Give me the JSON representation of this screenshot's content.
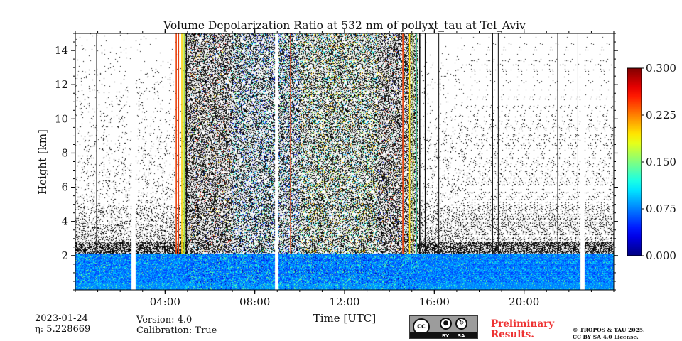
{
  "chart_data": {
    "type": "heatmap",
    "title": "Volume Depolarization Ratio at 532 nm of pollyxt_tau at Tel_Aviv",
    "xlabel": "Time [UTC]",
    "ylabel": "Height [km]",
    "xlim_hours": [
      0,
      24
    ],
    "ylim_km": [
      0,
      15
    ],
    "x_ticks": [
      {
        "hour": 4,
        "label": "04:00"
      },
      {
        "hour": 8,
        "label": "08:00"
      },
      {
        "hour": 12,
        "label": "12:00"
      },
      {
        "hour": 16,
        "label": "16:00"
      },
      {
        "hour": 20,
        "label": "20:00"
      }
    ],
    "y_ticks": [
      {
        "km": 2,
        "label": "2"
      },
      {
        "km": 4,
        "label": "4"
      },
      {
        "km": 6,
        "label": "6"
      },
      {
        "km": 8,
        "label": "8"
      },
      {
        "km": 10,
        "label": "10"
      },
      {
        "km": 12,
        "label": "12"
      },
      {
        "km": 14,
        "label": "14"
      }
    ],
    "colorbar": {
      "colormap": "jet",
      "range": [
        0.0,
        0.3
      ],
      "ticks": [
        "0.000",
        "0.075",
        "0.150",
        "0.225",
        "0.300"
      ]
    },
    "layer_top_km": 2.1,
    "data_gaps_hours": [
      [
        2.5,
        2.7
      ],
      [
        8.9,
        9.05
      ],
      [
        22.5,
        22.7
      ]
    ],
    "noisy_daytime_hours": [
      4.9,
      15.3
    ],
    "artifact_columns": [
      {
        "hour": 4.5,
        "color": "#e8400c"
      },
      {
        "hour": 4.6,
        "color": "#e8400c"
      },
      {
        "hour": 4.75,
        "color": "#ffd600"
      },
      {
        "hour": 4.85,
        "color": "#aee03a"
      },
      {
        "hour": 4.95,
        "color": "#111111"
      },
      {
        "hour": 9.6,
        "color": "#e8400c"
      },
      {
        "hour": 14.6,
        "color": "#e8400c"
      },
      {
        "hour": 14.9,
        "color": "#ffd600"
      },
      {
        "hour": 15.05,
        "color": "#aee03a"
      },
      {
        "hour": 15.2,
        "color": "#2fbf8a"
      },
      {
        "hour": 15.35,
        "color": "#111111"
      },
      {
        "hour": 15.6,
        "color": "#111111"
      }
    ],
    "black_lines_hours": [
      0.95,
      16.2,
      18.6,
      18.85,
      21.5,
      22.4
    ]
  },
  "info": {
    "date": "2023-01-24",
    "eta": "η: 5.228669",
    "version": "Version: 4.0",
    "calibration": "Calibration: True"
  },
  "license": {
    "badge_cc": "cc",
    "badge_by": "BY",
    "badge_sa": "SA",
    "preliminary_line1": "Preliminary",
    "preliminary_line2": "Results.",
    "notice_line1": "© TROPOS & TAU 2025.",
    "notice_line2": "CC BY SA 4.0 License."
  }
}
